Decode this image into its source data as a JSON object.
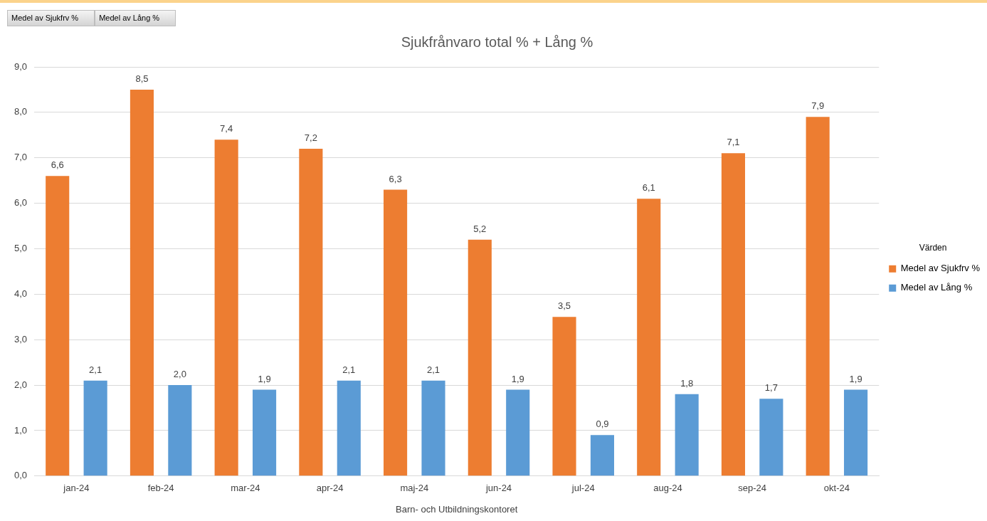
{
  "chart_data": {
    "type": "bar",
    "title": "Sjukfrånvaro total % + Lång %",
    "xlabel": "Barn- och Utbildningskontoret",
    "legend_title": "Värden",
    "annotations": [
      "Medel av Sjukfrv %",
      "Medel av Lång %"
    ],
    "categories": [
      "jan-24",
      "feb-24",
      "mar-24",
      "apr-24",
      "maj-24",
      "jun-24",
      "jul-24",
      "aug-24",
      "sep-24",
      "okt-24"
    ],
    "series": [
      {
        "name": "Medel av Sjukfrv %",
        "color": "#ed7d31",
        "values": [
          6.6,
          8.5,
          7.4,
          7.2,
          6.3,
          5.2,
          3.5,
          6.1,
          7.1,
          7.9
        ],
        "value_labels": [
          "6,6",
          "8,5",
          "7,4",
          "7,2",
          "6,3",
          "5,2",
          "3,5",
          "6,1",
          "7,1",
          "7,9"
        ]
      },
      {
        "name": "Medel av Lång %",
        "color": "#5b9bd5",
        "values": [
          2.1,
          2.0,
          1.9,
          2.1,
          2.1,
          1.9,
          0.9,
          1.8,
          1.7,
          1.9
        ],
        "value_labels": [
          "2,1",
          "2,0",
          "1,9",
          "2,1",
          "2,1",
          "1,9",
          "0,9",
          "1,8",
          "1,7",
          "1,9"
        ]
      }
    ],
    "ylim": [
      0,
      9
    ],
    "yticks": [
      {
        "value": 0,
        "label": "0,0"
      },
      {
        "value": 1,
        "label": "1,0"
      },
      {
        "value": 2,
        "label": "2,0"
      },
      {
        "value": 3,
        "label": "3,0"
      },
      {
        "value": 4,
        "label": "4,0"
      },
      {
        "value": 5,
        "label": "5,0"
      },
      {
        "value": 6,
        "label": "6,0"
      },
      {
        "value": 7,
        "label": "7,0"
      },
      {
        "value": 8,
        "label": "8,0"
      },
      {
        "value": 9,
        "label": "9,0"
      }
    ],
    "grid": "y",
    "legend": "right"
  }
}
